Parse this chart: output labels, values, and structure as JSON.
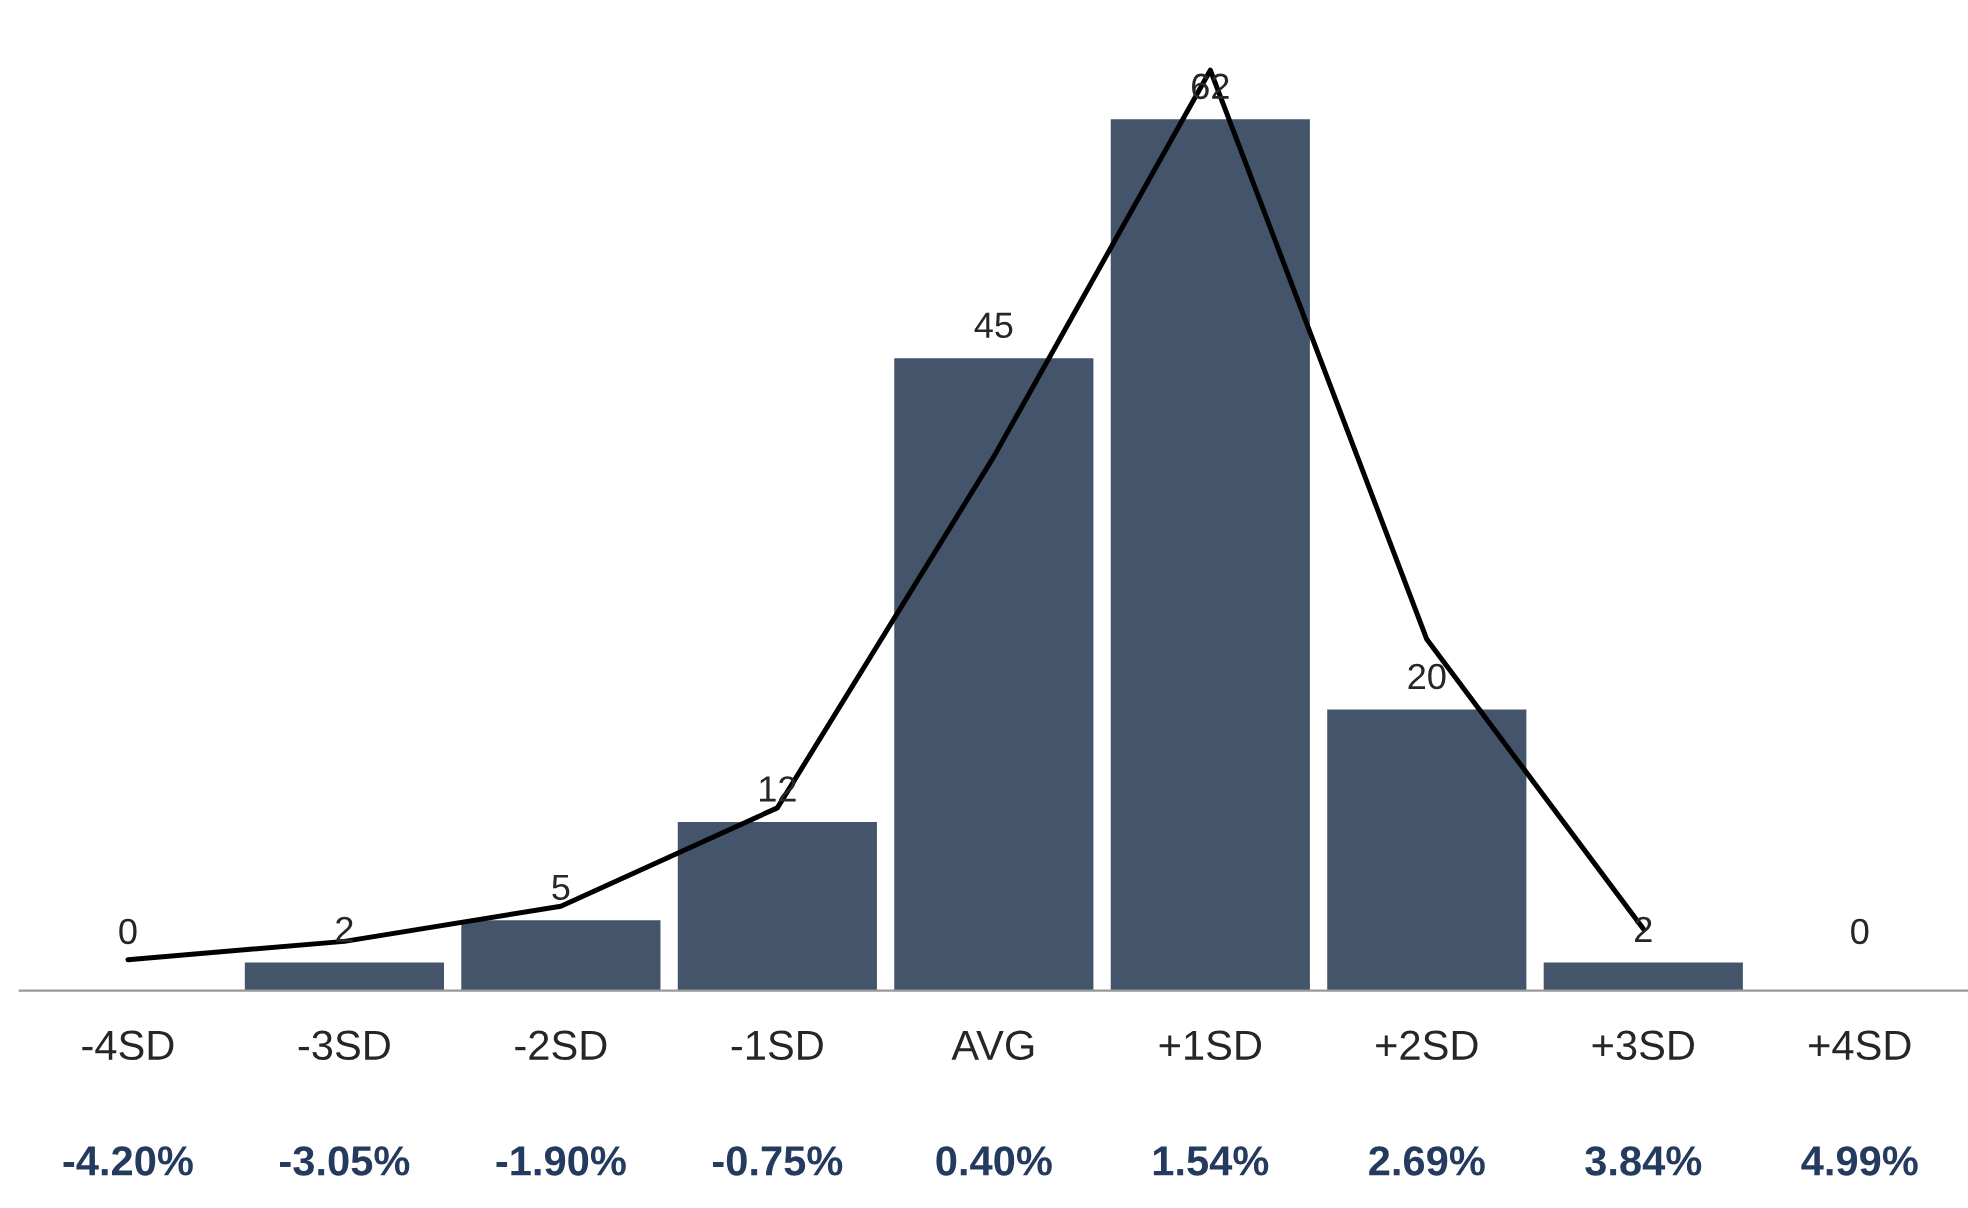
{
  "chart_data": {
    "type": "bar",
    "categories": [
      "-4SD",
      "-3SD",
      "-2SD",
      "-1SD",
      "AVG",
      "+1SD",
      "+2SD",
      "+3SD",
      "+4SD"
    ],
    "series": [
      {
        "color": "#44546a",
        "values": [
          0,
          2,
          5,
          12,
          45,
          62,
          20,
          2,
          0
        ],
        "value_labels": [
          "0",
          "2",
          "5",
          "12",
          "45",
          "62",
          "20",
          "2",
          "0"
        ]
      },
      {
        "type": "line",
        "color": "#000000",
        "values": [
          2.2,
          3.5,
          6,
          13,
          38,
          65.5,
          25,
          4.4,
          null
        ]
      }
    ],
    "annotations": [
      "-4.20%",
      "-3.05%",
      "-1.90%",
      "-0.75%",
      "0.40%",
      "1.54%",
      "2.69%",
      "3.84%",
      "4.99%"
    ],
    "grid": false,
    "legend": false
  }
}
